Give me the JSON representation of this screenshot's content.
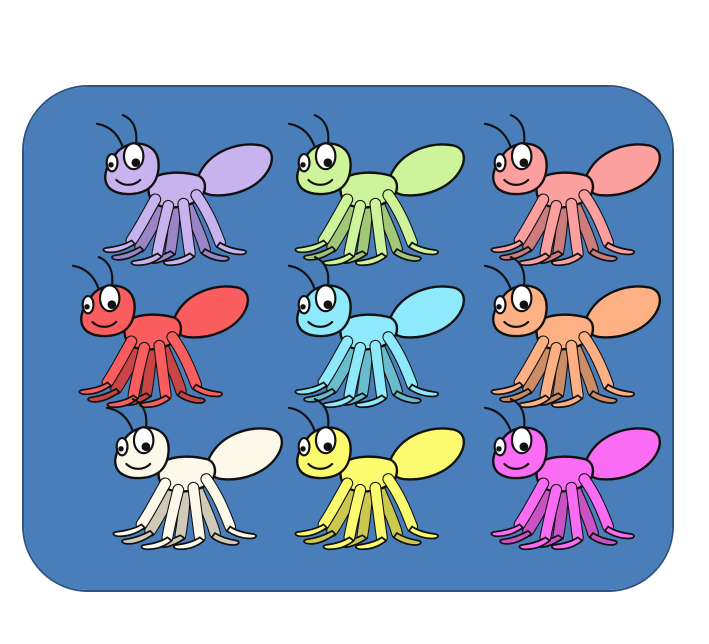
{
  "panel": {
    "background": "#4a7ebb",
    "border": "#2f5380"
  },
  "ants": [
    {
      "row": 1,
      "col": 1,
      "color": "#c9b3ef",
      "dark": "#9a86c7"
    },
    {
      "row": 1,
      "col": 2,
      "color": "#cdf49a",
      "dark": "#a1c878"
    },
    {
      "row": 1,
      "col": 3,
      "color": "#fb9f9f",
      "dark": "#cc7c7c"
    },
    {
      "row": 2,
      "col": 1,
      "color": "#f95d5d",
      "dark": "#c94545"
    },
    {
      "row": 2,
      "col": 2,
      "color": "#8ee9fb",
      "dark": "#68bccb"
    },
    {
      "row": 2,
      "col": 3,
      "color": "#fdb083",
      "dark": "#cc8c66"
    },
    {
      "row": 3,
      "col": 1,
      "color": "#fcf9ea",
      "dark": "#cfcab8"
    },
    {
      "row": 3,
      "col": 2,
      "color": "#fcfa6e",
      "dark": "#cbc84f"
    },
    {
      "row": 3,
      "col": 3,
      "color": "#fb6cf5",
      "dark": "#c952c4"
    }
  ]
}
